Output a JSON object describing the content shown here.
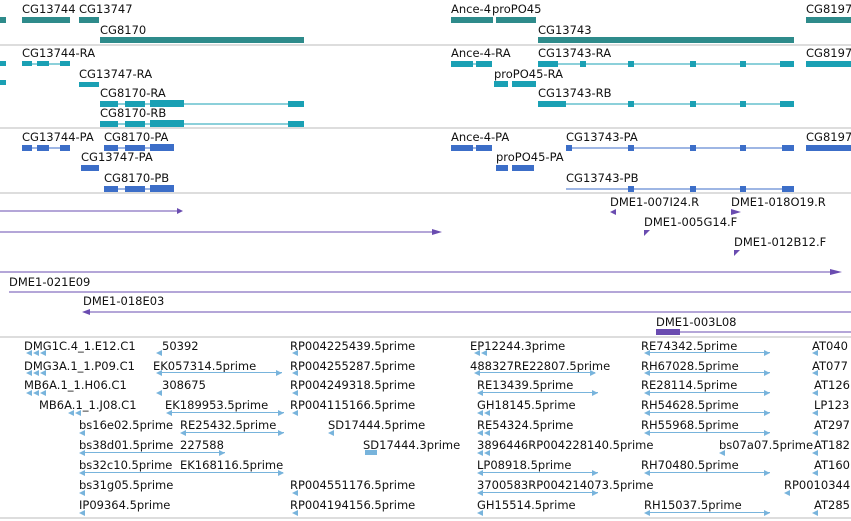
{
  "colors": {
    "gene": "#2e8b8b",
    "mrna": "#1aa0b4",
    "protein": "#3c6ec8",
    "clone": "#6a4cb0",
    "est": "#78b4dc",
    "divider": "#bbbbbb"
  },
  "tracks": {
    "genes": [
      {
        "label": "CG13744"
      },
      {
        "label": "CG13747"
      },
      {
        "label": "CG8170"
      },
      {
        "label": "Ance-4"
      },
      {
        "label": "proPO45"
      },
      {
        "label": "CG13743"
      },
      {
        "label": "CG8197"
      }
    ],
    "transcripts": [
      {
        "label": "CG13744-RA"
      },
      {
        "label": "CG13747-RA"
      },
      {
        "label": "CG8170-RA"
      },
      {
        "label": "CG8170-RB"
      },
      {
        "label": "Ance-4-RA"
      },
      {
        "label": "proPO45-RA"
      },
      {
        "label": "CG13743-RA"
      },
      {
        "label": "CG13743-RB"
      },
      {
        "label": "CG8197"
      }
    ],
    "proteins": [
      {
        "label": "CG13744-PA"
      },
      {
        "label": "CG8170-PA"
      },
      {
        "label": "CG13747-PA"
      },
      {
        "label": "CG8170-PB"
      },
      {
        "label": "Ance-4-PA"
      },
      {
        "label": "proPO45-PA"
      },
      {
        "label": "CG13743-PA"
      },
      {
        "label": "CG13743-PB"
      },
      {
        "label": "CG8197"
      }
    ],
    "clones": [
      {
        "label": "DME1-007I24.R"
      },
      {
        "label": "DME1-018O19.R"
      },
      {
        "label": "DME1-005G14.F"
      },
      {
        "label": "DME1-012B12.F"
      },
      {
        "label": "DME1-021E09"
      },
      {
        "label": "DME1-018E03"
      },
      {
        "label": "DME1-003L08"
      }
    ],
    "ests": [
      {
        "label": "DMG1C.4_1.E12.C1"
      },
      {
        "label": "50392"
      },
      {
        "label": "RP004225439.5prime"
      },
      {
        "label": "EP12244.3prime"
      },
      {
        "label": "RE74342.5prime"
      },
      {
        "label": "AT040"
      },
      {
        "label": "DMG3A.1_1.P09.C1"
      },
      {
        "label": "EK057314.5prime"
      },
      {
        "label": "RP004255287.5prime"
      },
      {
        "label": "488327RE22807.5prime"
      },
      {
        "label": "RH67028.5prime"
      },
      {
        "label": "AT077"
      },
      {
        "label": "MB6A.1_1.H06.C1"
      },
      {
        "label": "308675"
      },
      {
        "label": "RP004249318.5prime"
      },
      {
        "label": "RE13439.5prime"
      },
      {
        "label": "RE28114.5prime"
      },
      {
        "label": "AT126"
      },
      {
        "label": "MB6A.1_1.J08.C1"
      },
      {
        "label": "EK189953.5prime"
      },
      {
        "label": "RP004115166.5prime"
      },
      {
        "label": "GH18145.5prime"
      },
      {
        "label": "RH54628.5prime"
      },
      {
        "label": "LP123"
      },
      {
        "label": "bs16e02.5prime"
      },
      {
        "label": "RE25432.5prime"
      },
      {
        "label": "SD17444.5prime"
      },
      {
        "label": "RE54324.5prime"
      },
      {
        "label": "RH55968.5prime"
      },
      {
        "label": "AT297"
      },
      {
        "label": "bs38d01.5prime"
      },
      {
        "label": "227588"
      },
      {
        "label": "SD17444.3prime"
      },
      {
        "label": "3896446RP004228140.5prime"
      },
      {
        "label": "bs07a07.5prime"
      },
      {
        "label": "AT182"
      },
      {
        "label": "bs32c10.5prime"
      },
      {
        "label": "EK168116.5prime"
      },
      {
        "label": "LP08918.5prime"
      },
      {
        "label": "RH70480.5prime"
      },
      {
        "label": "AT160"
      },
      {
        "label": "bs31g05.5prime"
      },
      {
        "label": "RP004551176.5prime"
      },
      {
        "label": "3700583RP004214073.5prime"
      },
      {
        "label": "RP0010344"
      },
      {
        "label": "IP09364.5prime"
      },
      {
        "label": "RP004194156.5prime"
      },
      {
        "label": "GH15514.5prime"
      },
      {
        "label": "RH15037.5prime"
      },
      {
        "label": "AT285"
      }
    ]
  }
}
